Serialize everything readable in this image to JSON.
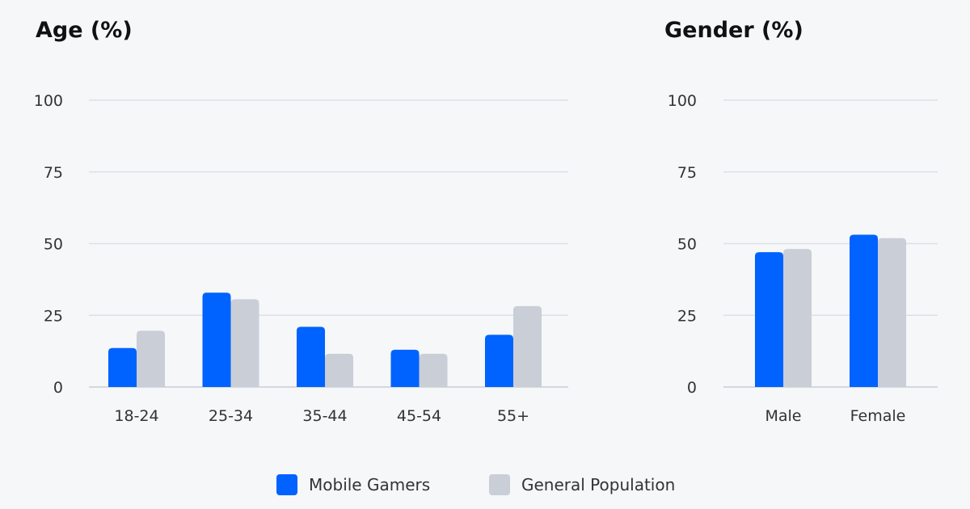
{
  "colors": {
    "mobile_gamers": "#0062ff",
    "general_population": "#c9ced7"
  },
  "legend": [
    "Mobile Gamers",
    "General Population"
  ],
  "chart_data": [
    {
      "type": "bar",
      "title": "Age (%)",
      "xlabel": "",
      "ylabel": "",
      "ylim": [
        0,
        100
      ],
      "yticks": [
        "0",
        "25",
        "50",
        "75",
        "100"
      ],
      "categories": [
        "18-24",
        "25-34",
        "35-44",
        "45-54",
        "55+"
      ],
      "series": [
        {
          "name": "Mobile Gamers",
          "values": [
            13.6,
            32.9,
            21.0,
            13.0,
            18.2
          ]
        },
        {
          "name": "General Population",
          "values": [
            19.6,
            30.6,
            11.6,
            11.6,
            28.2
          ]
        }
      ],
      "grid": true,
      "legend_position": "bottom-center"
    },
    {
      "type": "bar",
      "title": "Gender (%)",
      "xlabel": "",
      "ylabel": "",
      "ylim": [
        0,
        100
      ],
      "yticks": [
        "0",
        "25",
        "50",
        "75",
        "100"
      ],
      "categories": [
        "Male",
        "Female"
      ],
      "series": [
        {
          "name": "Mobile Gamers",
          "values": [
            47.0,
            53.1
          ]
        },
        {
          "name": "General Population",
          "values": [
            48.1,
            51.9
          ]
        }
      ],
      "grid": true,
      "legend_position": "bottom-center"
    }
  ]
}
